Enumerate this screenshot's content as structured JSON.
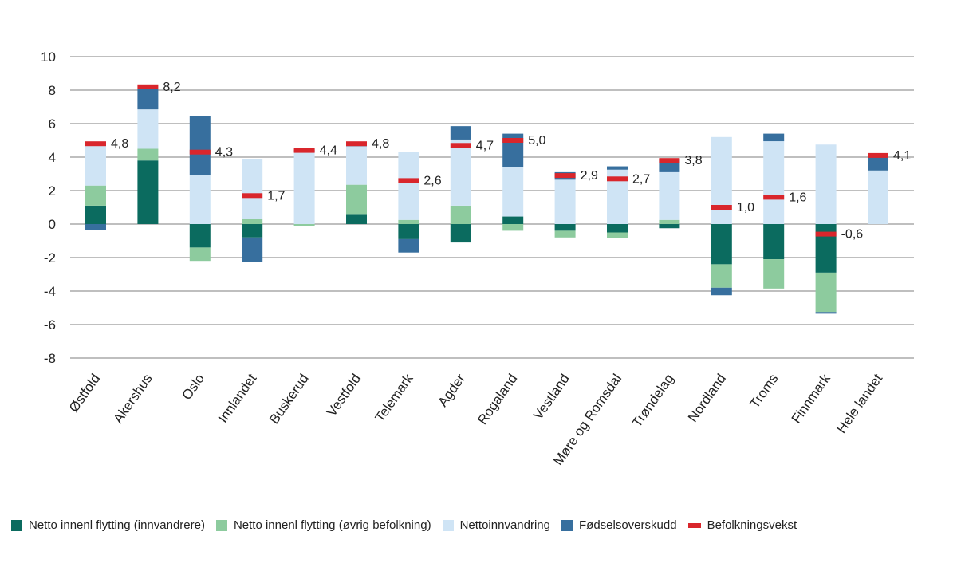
{
  "chart_data": {
    "type": "bar",
    "stacked": true,
    "ylim": [
      -8,
      10
    ],
    "yticks": [
      10,
      8,
      6,
      4,
      2,
      0,
      -2,
      -4,
      -6,
      -8
    ],
    "grid": true,
    "categories": [
      "Østfold",
      "Akershus",
      "Oslo",
      "Innlandet",
      "Buskerud",
      "Vestfold",
      "Telemark",
      "Agder",
      "Rogaland",
      "Vestland",
      "Møre og Romsdal",
      "Trøndelag",
      "Nordland",
      "Troms",
      "Finnmark",
      "Hele landet"
    ],
    "series": [
      {
        "name": "Netto innenl flytting (innvandrere)",
        "color": "#0b6b5f",
        "values": [
          1.1,
          3.8,
          -1.4,
          -0.8,
          0.0,
          0.6,
          -0.9,
          -1.1,
          0.45,
          -0.4,
          -0.5,
          -0.25,
          -2.4,
          -2.1,
          -2.9,
          0.0
        ]
      },
      {
        "name": "Netto innenl flytting (øvrig befolkning)",
        "color": "#8dcb9e",
        "values": [
          1.2,
          0.7,
          -0.8,
          0.3,
          -0.1,
          1.75,
          0.25,
          1.1,
          -0.4,
          -0.4,
          -0.35,
          0.25,
          -1.4,
          -1.75,
          -2.35,
          0.0
        ]
      },
      {
        "name": "Nettoinnvandring",
        "color": "#cfe4f5",
        "values": [
          2.6,
          2.35,
          2.95,
          3.6,
          4.3,
          2.3,
          4.05,
          3.95,
          2.95,
          2.65,
          3.25,
          2.85,
          5.2,
          4.95,
          4.75,
          3.2
        ]
      },
      {
        "name": "Fødselsoverskudd",
        "color": "#376f9e",
        "values": [
          -0.35,
          1.2,
          3.5,
          -1.45,
          0.15,
          0.2,
          -0.8,
          0.8,
          2.0,
          0.45,
          0.2,
          0.8,
          -0.45,
          0.45,
          -0.1,
          0.9
        ]
      }
    ],
    "line_series": {
      "name": "Befolkningsvekst",
      "color": "#d9262c",
      "values": [
        4.8,
        8.2,
        4.3,
        1.7,
        4.4,
        4.8,
        2.6,
        4.7,
        5.0,
        2.9,
        2.7,
        3.8,
        1.0,
        1.6,
        -0.6,
        4.1
      ]
    },
    "data_labels": [
      "4,8",
      "8,2",
      "4,3",
      "1,7",
      "4,4",
      "4,8",
      "2,6",
      "4,7",
      "5,0",
      "2,9",
      "2,7",
      "3,8",
      "1,0",
      "1,6",
      "-0,6",
      "4,1"
    ],
    "legend_position": "bottom"
  }
}
